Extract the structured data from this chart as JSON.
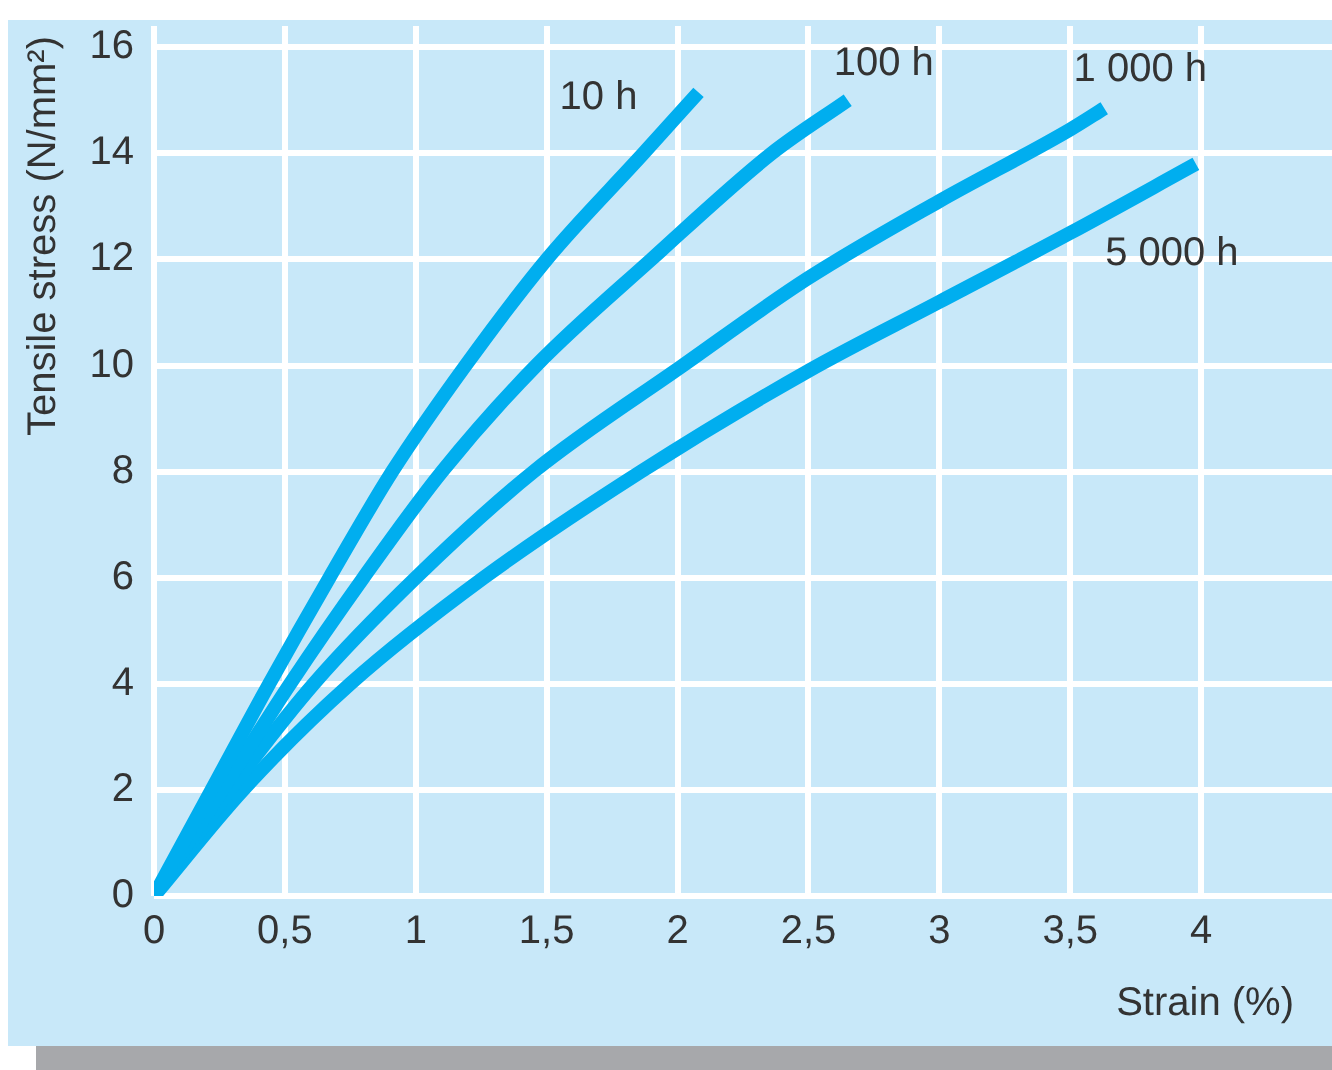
{
  "chart_data": {
    "type": "line",
    "xlabel": "Strain (%)",
    "ylabel": "Tensile stress (N/mm²)",
    "xlim": [
      0,
      4.5
    ],
    "ylim": [
      0,
      16.4
    ],
    "xticks": [
      0,
      {
        "value": 0.5,
        "label": "0,5"
      },
      1,
      {
        "value": 1.5,
        "label": "1,5"
      },
      2,
      {
        "value": 2.5,
        "label": "2,5"
      },
      3,
      {
        "value": 3.5,
        "label": "3,5"
      },
      4
    ],
    "yticks": [
      0,
      2,
      4,
      6,
      8,
      10,
      12,
      14,
      16
    ],
    "grid": true,
    "marker": "none",
    "line_style": "solid",
    "series": [
      {
        "name": "10 h",
        "color": "#00aeef",
        "x": [
          0,
          0.22,
          0.44,
          0.67,
          0.91,
          1.19,
          1.5,
          1.87,
          2.08
        ],
        "values": [
          0,
          2,
          4,
          6,
          8,
          10,
          12,
          14,
          15.15
        ]
      },
      {
        "name": "100 h",
        "color": "#00aeef",
        "x": [
          0,
          0.26,
          0.52,
          0.8,
          1.1,
          1.46,
          1.9,
          2.36,
          2.65
        ],
        "values": [
          0,
          2,
          4,
          6,
          8,
          10,
          12,
          14,
          15
        ]
      },
      {
        "name": "1 000 h",
        "color": "#00aeef",
        "x": [
          0,
          0.29,
          0.61,
          1,
          1.45,
          2.02,
          2.5,
          3,
          3.5,
          3.63
        ],
        "values": [
          0,
          2,
          4,
          6,
          8,
          10,
          11.65,
          13.1,
          14.45,
          14.85
        ]
      },
      {
        "name": "5 000 h",
        "color": "#00aeef",
        "x": [
          0,
          0.34,
          0.75,
          1.26,
          1.86,
          2.5,
          3,
          3.5,
          3.98
        ],
        "values": [
          0,
          2,
          4,
          6,
          8,
          9.9,
          11.2,
          12.5,
          13.8
        ]
      }
    ]
  }
}
